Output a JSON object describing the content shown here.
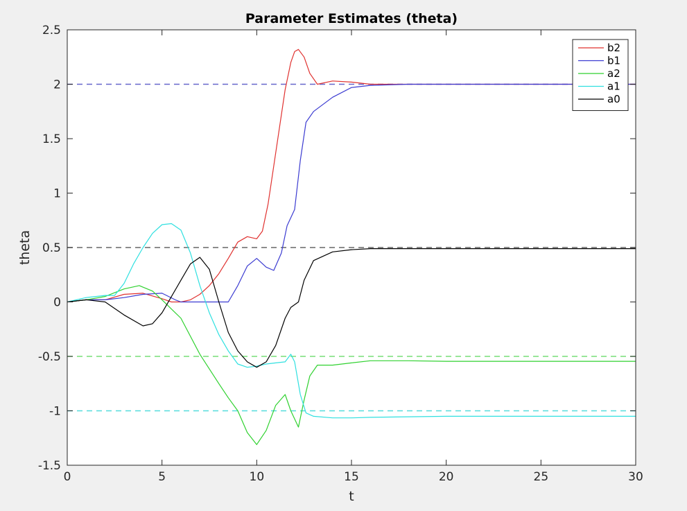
{
  "chart_data": {
    "type": "line",
    "title": "Parameter Estimates (theta)",
    "xlabel": "t",
    "ylabel": "theta",
    "xlim": [
      0,
      30
    ],
    "ylim": [
      -1.5,
      2.5
    ],
    "xticks": [
      0,
      5,
      10,
      15,
      20,
      25,
      30
    ],
    "xtick_labels": [
      "0",
      "5",
      "10",
      "15",
      "20",
      "25",
      "30"
    ],
    "yticks": [
      -1.5,
      -1,
      -0.5,
      0,
      0.5,
      1,
      1.5,
      2,
      2.5
    ],
    "ytick_labels": [
      "-1.5",
      "-1",
      "-0.5",
      "0",
      "0.5",
      "1",
      "1.5",
      "2",
      "2.5"
    ],
    "grid": false,
    "legend_position": "top-right",
    "series": [
      {
        "name": "b2",
        "color": "#e0312f",
        "x": [
          0,
          1,
          2,
          3,
          4,
          5,
          5.5,
          6,
          6.5,
          7,
          7.5,
          8,
          8.5,
          9,
          9.5,
          10,
          10.3,
          10.6,
          10.9,
          11.2,
          11.5,
          11.8,
          12,
          12.2,
          12.5,
          12.8,
          13.2,
          14,
          15,
          16,
          18,
          20,
          25,
          30
        ],
        "y": [
          0,
          0.02,
          0.02,
          0.07,
          0.08,
          0.03,
          0.0,
          0.0,
          0.02,
          0.07,
          0.15,
          0.26,
          0.4,
          0.55,
          0.6,
          0.58,
          0.65,
          0.9,
          1.25,
          1.6,
          1.95,
          2.2,
          2.3,
          2.32,
          2.25,
          2.1,
          2.0,
          2.03,
          2.02,
          2.0,
          2.0,
          2.0,
          2.0,
          2.0
        ]
      },
      {
        "name": "b1",
        "color": "#3b3bd1",
        "x": [
          0,
          1,
          2,
          3,
          4,
          5,
          5.7,
          6,
          7,
          8,
          8.5,
          9,
          9.5,
          10,
          10.5,
          10.9,
          11.3,
          11.6,
          12,
          12.3,
          12.6,
          13,
          14,
          15,
          16,
          18,
          20,
          25,
          30
        ],
        "y": [
          0,
          0.02,
          0.02,
          0.04,
          0.07,
          0.08,
          0.02,
          0,
          0,
          0,
          0.0,
          0.15,
          0.33,
          0.4,
          0.32,
          0.29,
          0.45,
          0.7,
          0.85,
          1.3,
          1.65,
          1.75,
          1.88,
          1.97,
          1.99,
          2.0,
          2.0,
          2.0,
          2.0
        ]
      },
      {
        "name": "a2",
        "color": "#2fd12f",
        "x": [
          0,
          1,
          2,
          3,
          3.8,
          4.5,
          5,
          6,
          7,
          8,
          8.5,
          9,
          9.5,
          10,
          10.5,
          11,
          11.5,
          11.8,
          12.2,
          12.5,
          12.8,
          13.2,
          14,
          15,
          16,
          18,
          20,
          25,
          30
        ],
        "y": [
          0,
          0.02,
          0.05,
          0.12,
          0.15,
          0.1,
          0.02,
          -0.15,
          -0.48,
          -0.75,
          -0.88,
          -1.0,
          -1.2,
          -1.31,
          -1.18,
          -0.95,
          -0.85,
          -1.0,
          -1.15,
          -0.9,
          -0.68,
          -0.58,
          -0.58,
          -0.56,
          -0.54,
          -0.54,
          -0.545,
          -0.545,
          -0.545
        ]
      },
      {
        "name": "a1",
        "color": "#2fe0e0",
        "x": [
          0,
          1,
          2,
          2.5,
          3,
          3.5,
          4,
          4.5,
          5,
          5.5,
          6,
          6.5,
          7,
          7.5,
          8,
          8.5,
          9,
          9.5,
          10,
          10.5,
          11,
          11.5,
          11.8,
          12,
          12.3,
          12.6,
          13,
          14,
          15,
          16,
          18,
          20,
          25,
          30
        ],
        "y": [
          0,
          0.04,
          0.06,
          0.06,
          0.17,
          0.35,
          0.5,
          0.63,
          0.71,
          0.72,
          0.66,
          0.45,
          0.15,
          -0.1,
          -0.3,
          -0.45,
          -0.57,
          -0.6,
          -0.59,
          -0.57,
          -0.56,
          -0.55,
          -0.48,
          -0.55,
          -0.85,
          -1.02,
          -1.05,
          -1.065,
          -1.065,
          -1.06,
          -1.055,
          -1.05,
          -1.05,
          -1.05
        ]
      },
      {
        "name": "a0",
        "color": "#000000",
        "x": [
          0,
          1,
          2,
          3,
          4,
          4.5,
          5,
          6,
          6.5,
          7,
          7.5,
          8,
          8.5,
          9,
          9.5,
          10,
          10.5,
          11,
          11.5,
          11.8,
          12.2,
          12.5,
          13,
          14,
          15,
          16,
          18,
          20,
          25,
          30
        ],
        "y": [
          0,
          0.02,
          0.0,
          -0.12,
          -0.22,
          -0.2,
          -0.1,
          0.2,
          0.35,
          0.41,
          0.3,
          0.0,
          -0.28,
          -0.45,
          -0.55,
          -0.6,
          -0.55,
          -0.4,
          -0.15,
          -0.05,
          0.0,
          0.2,
          0.38,
          0.46,
          0.48,
          0.49,
          0.49,
          0.49,
          0.49,
          0.49
        ]
      }
    ],
    "reference_lines": [
      {
        "y": 2,
        "color": "#6666cc"
      },
      {
        "y": 0.5,
        "color": "#666666"
      },
      {
        "y": -0.5,
        "color": "#77dd77"
      },
      {
        "y": -1,
        "color": "#55dddd"
      }
    ],
    "legend_entries": [
      "b2",
      "b1",
      "a2",
      "a1",
      "a0"
    ]
  }
}
